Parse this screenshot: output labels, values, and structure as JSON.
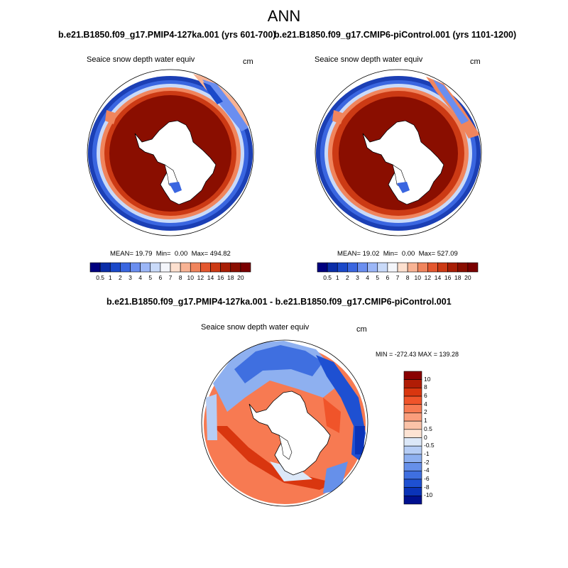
{
  "figure": {
    "title": "ANN"
  },
  "panels": [
    {
      "run_title": "b.e21.B1850.f09_g17.PMIP4-127ka.001 (yrs 601-700)",
      "variable": "Seaice snow depth water equiv",
      "units": "cm",
      "stats": {
        "mean_label": "MEAN=",
        "mean": "19.79",
        "min_label": "Min=",
        "min": "0.00",
        "max_label": "Max=",
        "max": "494.82"
      },
      "colorbar": {
        "labels": [
          "0.5",
          "1",
          "2",
          "3",
          "4",
          "5",
          "6",
          "7",
          "8",
          "10",
          "12",
          "14",
          "16",
          "18",
          "20"
        ],
        "colors": [
          "#00007f",
          "#0a2da8",
          "#1b49c9",
          "#3a66e0",
          "#6a8ef0",
          "#9bb6f7",
          "#c9daf9",
          "#f4f6fb",
          "#fde0cf",
          "#f8b394",
          "#f0855d",
          "#e4582f",
          "#cc3a14",
          "#a81e05",
          "#8a0e00",
          "#7a0000"
        ]
      }
    },
    {
      "run_title": "b.e21.B1850.f09_g17.CMIP6-piControl.001 (yrs 1101-1200)",
      "variable": "Seaice snow depth water equiv",
      "units": "cm",
      "stats": {
        "mean_label": "MEAN=",
        "mean": "19.02",
        "min_label": "Min=",
        "min": "0.00",
        "max_label": "Max=",
        "max": "527.09"
      },
      "colorbar": {
        "labels": [
          "0.5",
          "1",
          "2",
          "3",
          "4",
          "5",
          "6",
          "7",
          "8",
          "10",
          "12",
          "14",
          "16",
          "18",
          "20"
        ],
        "colors": [
          "#00007f",
          "#0a2da8",
          "#1b49c9",
          "#3a66e0",
          "#6a8ef0",
          "#9bb6f7",
          "#c9daf9",
          "#f4f6fb",
          "#fde0cf",
          "#f8b394",
          "#f0855d",
          "#e4582f",
          "#cc3a14",
          "#a81e05",
          "#8a0e00",
          "#7a0000"
        ]
      }
    },
    {
      "run_title": "b.e21.B1850.f09_g17.PMIP4-127ka.001 - b.e21.B1850.f09_g17.CMIP6-piControl.001",
      "variable": "Seaice snow depth water equiv",
      "units": "cm",
      "stats": {
        "min_label": "MIN =",
        "min": "-272.43",
        "max_label": "MAX =",
        "max": "139.28",
        "text": "MIN = -272.43 MAX = 139.28"
      },
      "colorbar": {
        "labels": [
          "10",
          "8",
          "6",
          "4",
          "2",
          "1",
          "0.5",
          "0",
          "-0.5",
          "-1",
          "-2",
          "-4",
          "-6",
          "-8",
          "-10"
        ],
        "colors": [
          "#8a0000",
          "#b01c05",
          "#d9360f",
          "#f0542a",
          "#f77a52",
          "#fa9e7c",
          "#fbc3a8",
          "#fde3d3",
          "#dce8f8",
          "#b6cdf5",
          "#8eb0f0",
          "#6690ea",
          "#3f6fe0",
          "#1e50d2",
          "#0a33b8",
          "#00108f"
        ]
      }
    }
  ]
}
